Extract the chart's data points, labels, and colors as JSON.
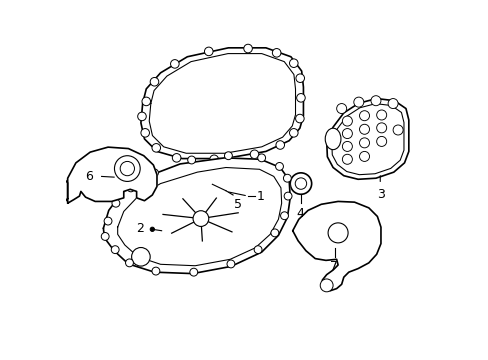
{
  "background_color": "#ffffff",
  "line_color": "#000000",
  "line_width": 1.2,
  "label_fontsize": 9
}
